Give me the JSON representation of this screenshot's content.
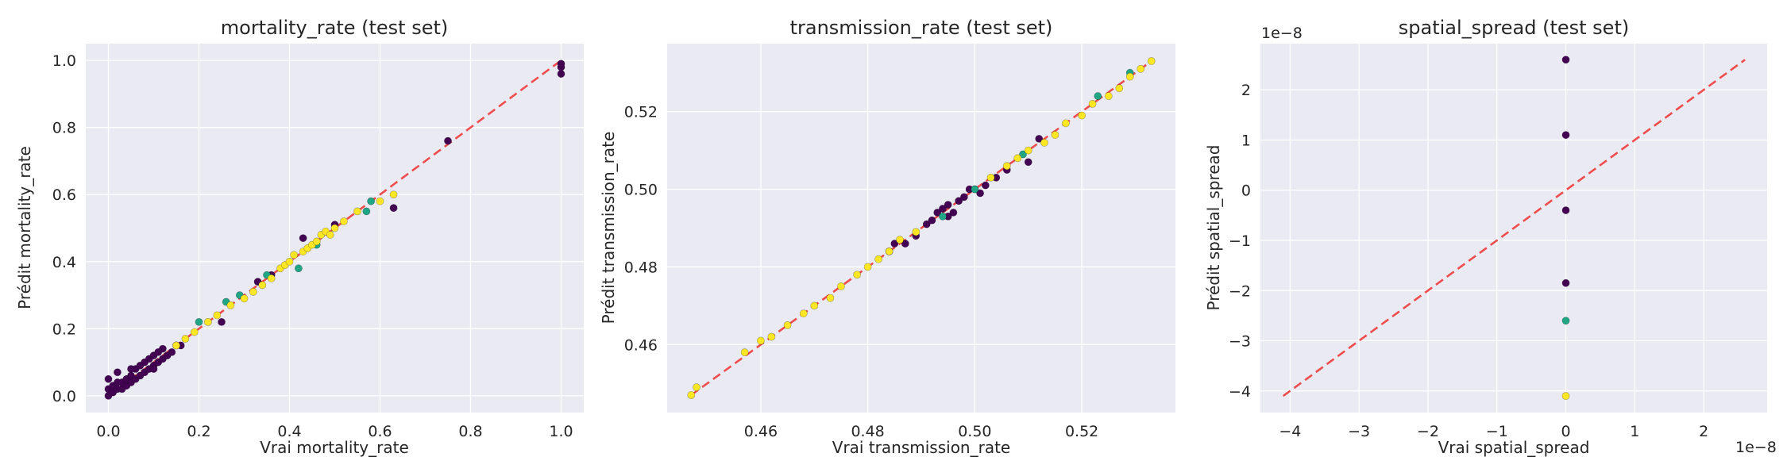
{
  "chart_data": [
    {
      "type": "scatter",
      "title": "mortality_rate (test set)",
      "xlabel": "Vrai mortality_rate",
      "ylabel": "Prédit mortality_rate",
      "xlim": [
        -0.05,
        1.05
      ],
      "ylim": [
        -0.05,
        1.05
      ],
      "xticks": [
        0.0,
        0.2,
        0.4,
        0.6,
        0.8,
        1.0
      ],
      "yticks": [
        0.0,
        0.2,
        0.4,
        0.6,
        0.8,
        1.0
      ],
      "xtick_labels": [
        "0.0",
        "0.2",
        "0.4",
        "0.6",
        "0.8",
        "1.0"
      ],
      "ytick_labels": [
        "0.0",
        "0.2",
        "0.4",
        "0.6",
        "0.8",
        "1.0"
      ],
      "identity_line": [
        0.0,
        1.0
      ],
      "grid": true,
      "series": [
        {
          "color": "#440154",
          "x": [
            0.0,
            0.0,
            0.0,
            0.01,
            0.01,
            0.02,
            0.02,
            0.03,
            0.03,
            0.04,
            0.04,
            0.05,
            0.05,
            0.06,
            0.06,
            0.07,
            0.07,
            0.08,
            0.08,
            0.09,
            0.09,
            0.1,
            0.1,
            0.11,
            0.11,
            0.12,
            0.12,
            0.13,
            0.14,
            0.15,
            0.16,
            0.02,
            0.05,
            0.1,
            0.25,
            0.33,
            0.36,
            0.43,
            0.5,
            0.63,
            0.75,
            1.0,
            1.0,
            1.0
          ],
          "y": [
            0.0,
            0.02,
            0.05,
            0.01,
            0.03,
            0.02,
            0.04,
            0.02,
            0.04,
            0.03,
            0.05,
            0.04,
            0.06,
            0.05,
            0.08,
            0.06,
            0.09,
            0.07,
            0.1,
            0.08,
            0.11,
            0.09,
            0.12,
            0.1,
            0.13,
            0.11,
            0.14,
            0.12,
            0.13,
            0.15,
            0.15,
            0.07,
            0.08,
            0.08,
            0.22,
            0.34,
            0.36,
            0.47,
            0.51,
            0.56,
            0.76,
            0.96,
            0.98,
            0.99
          ]
        },
        {
          "color": "#21a685",
          "x": [
            0.2,
            0.26,
            0.29,
            0.35,
            0.42,
            0.46,
            0.57,
            0.58
          ],
          "y": [
            0.22,
            0.28,
            0.3,
            0.36,
            0.38,
            0.45,
            0.55,
            0.58
          ]
        },
        {
          "color": "#fde725",
          "x": [
            0.15,
            0.17,
            0.19,
            0.22,
            0.24,
            0.27,
            0.3,
            0.32,
            0.34,
            0.36,
            0.38,
            0.39,
            0.4,
            0.41,
            0.43,
            0.44,
            0.45,
            0.46,
            0.47,
            0.48,
            0.49,
            0.5,
            0.52,
            0.55,
            0.6,
            0.63
          ],
          "y": [
            0.15,
            0.17,
            0.19,
            0.22,
            0.24,
            0.27,
            0.29,
            0.31,
            0.33,
            0.35,
            0.38,
            0.39,
            0.4,
            0.42,
            0.43,
            0.44,
            0.45,
            0.46,
            0.48,
            0.49,
            0.48,
            0.5,
            0.52,
            0.55,
            0.58,
            0.6
          ]
        }
      ]
    },
    {
      "type": "scatter",
      "title": "transmission_rate (test set)",
      "xlabel": "Vrai transmission_rate",
      "ylabel": "Prédit transmission_rate",
      "xlim": [
        0.4425,
        0.5375
      ],
      "ylim": [
        0.4425,
        0.5375
      ],
      "xticks": [
        0.46,
        0.48,
        0.5,
        0.52
      ],
      "yticks": [
        0.46,
        0.48,
        0.5,
        0.52
      ],
      "xtick_labels": [
        "0.46",
        "0.48",
        "0.50",
        "0.52"
      ],
      "ytick_labels": [
        "0.46",
        "0.48",
        "0.50",
        "0.52"
      ],
      "identity_line": [
        0.447,
        0.533
      ],
      "grid": true,
      "series": [
        {
          "color": "#440154",
          "x": [
            0.484,
            0.487,
            0.489,
            0.491,
            0.492,
            0.493,
            0.494,
            0.495,
            0.496,
            0.497,
            0.498,
            0.499,
            0.5,
            0.501,
            0.502,
            0.504,
            0.506,
            0.51,
            0.512,
            0.485,
            0.495
          ],
          "y": [
            0.484,
            0.486,
            0.488,
            0.491,
            0.492,
            0.494,
            0.495,
            0.496,
            0.494,
            0.497,
            0.498,
            0.5,
            0.5,
            0.499,
            0.501,
            0.503,
            0.505,
            0.507,
            0.513,
            0.486,
            0.493
          ]
        },
        {
          "color": "#21a685",
          "x": [
            0.494,
            0.5,
            0.509,
            0.523,
            0.529
          ],
          "y": [
            0.493,
            0.5,
            0.509,
            0.524,
            0.53
          ]
        },
        {
          "color": "#fde725",
          "x": [
            0.447,
            0.448,
            0.457,
            0.46,
            0.462,
            0.465,
            0.468,
            0.47,
            0.473,
            0.475,
            0.478,
            0.48,
            0.482,
            0.484,
            0.486,
            0.489,
            0.503,
            0.506,
            0.508,
            0.51,
            0.513,
            0.515,
            0.517,
            0.52,
            0.522,
            0.525,
            0.527,
            0.529,
            0.531,
            0.533
          ],
          "y": [
            0.447,
            0.449,
            0.458,
            0.461,
            0.462,
            0.465,
            0.468,
            0.47,
            0.472,
            0.475,
            0.478,
            0.48,
            0.482,
            0.484,
            0.487,
            0.489,
            0.503,
            0.506,
            0.508,
            0.51,
            0.512,
            0.514,
            0.517,
            0.519,
            0.522,
            0.524,
            0.526,
            0.529,
            0.531,
            0.533
          ]
        }
      ]
    },
    {
      "type": "scatter",
      "title": "spatial_spread (test set)",
      "xlabel": "Vrai spatial_spread",
      "ylabel": "Prédit spatial_spread",
      "x_offset_label": "1e−8",
      "y_offset_label": "1e−8",
      "xlim": [
        -4.43,
        2.92
      ],
      "ylim": [
        -4.43,
        2.92
      ],
      "xticks": [
        -4,
        -3,
        -2,
        -1,
        0,
        1,
        2
      ],
      "yticks": [
        -4,
        -3,
        -2,
        -1,
        0,
        1,
        2
      ],
      "xtick_labels": [
        "−4",
        "−3",
        "−2",
        "−1",
        "0",
        "1",
        "2"
      ],
      "ytick_labels": [
        "−4",
        "−3",
        "−2",
        "−1",
        "0",
        "1",
        "2"
      ],
      "identity_line": [
        -4.1,
        2.6
      ],
      "grid": true,
      "series": [
        {
          "color": "#440154",
          "x": [
            0,
            0,
            0,
            0
          ],
          "y": [
            2.6,
            1.1,
            -0.4,
            -1.85
          ]
        },
        {
          "color": "#21a685",
          "x": [
            0
          ],
          "y": [
            -2.6
          ]
        },
        {
          "color": "#fde725",
          "x": [
            0
          ],
          "y": [
            -4.1
          ]
        }
      ]
    }
  ]
}
